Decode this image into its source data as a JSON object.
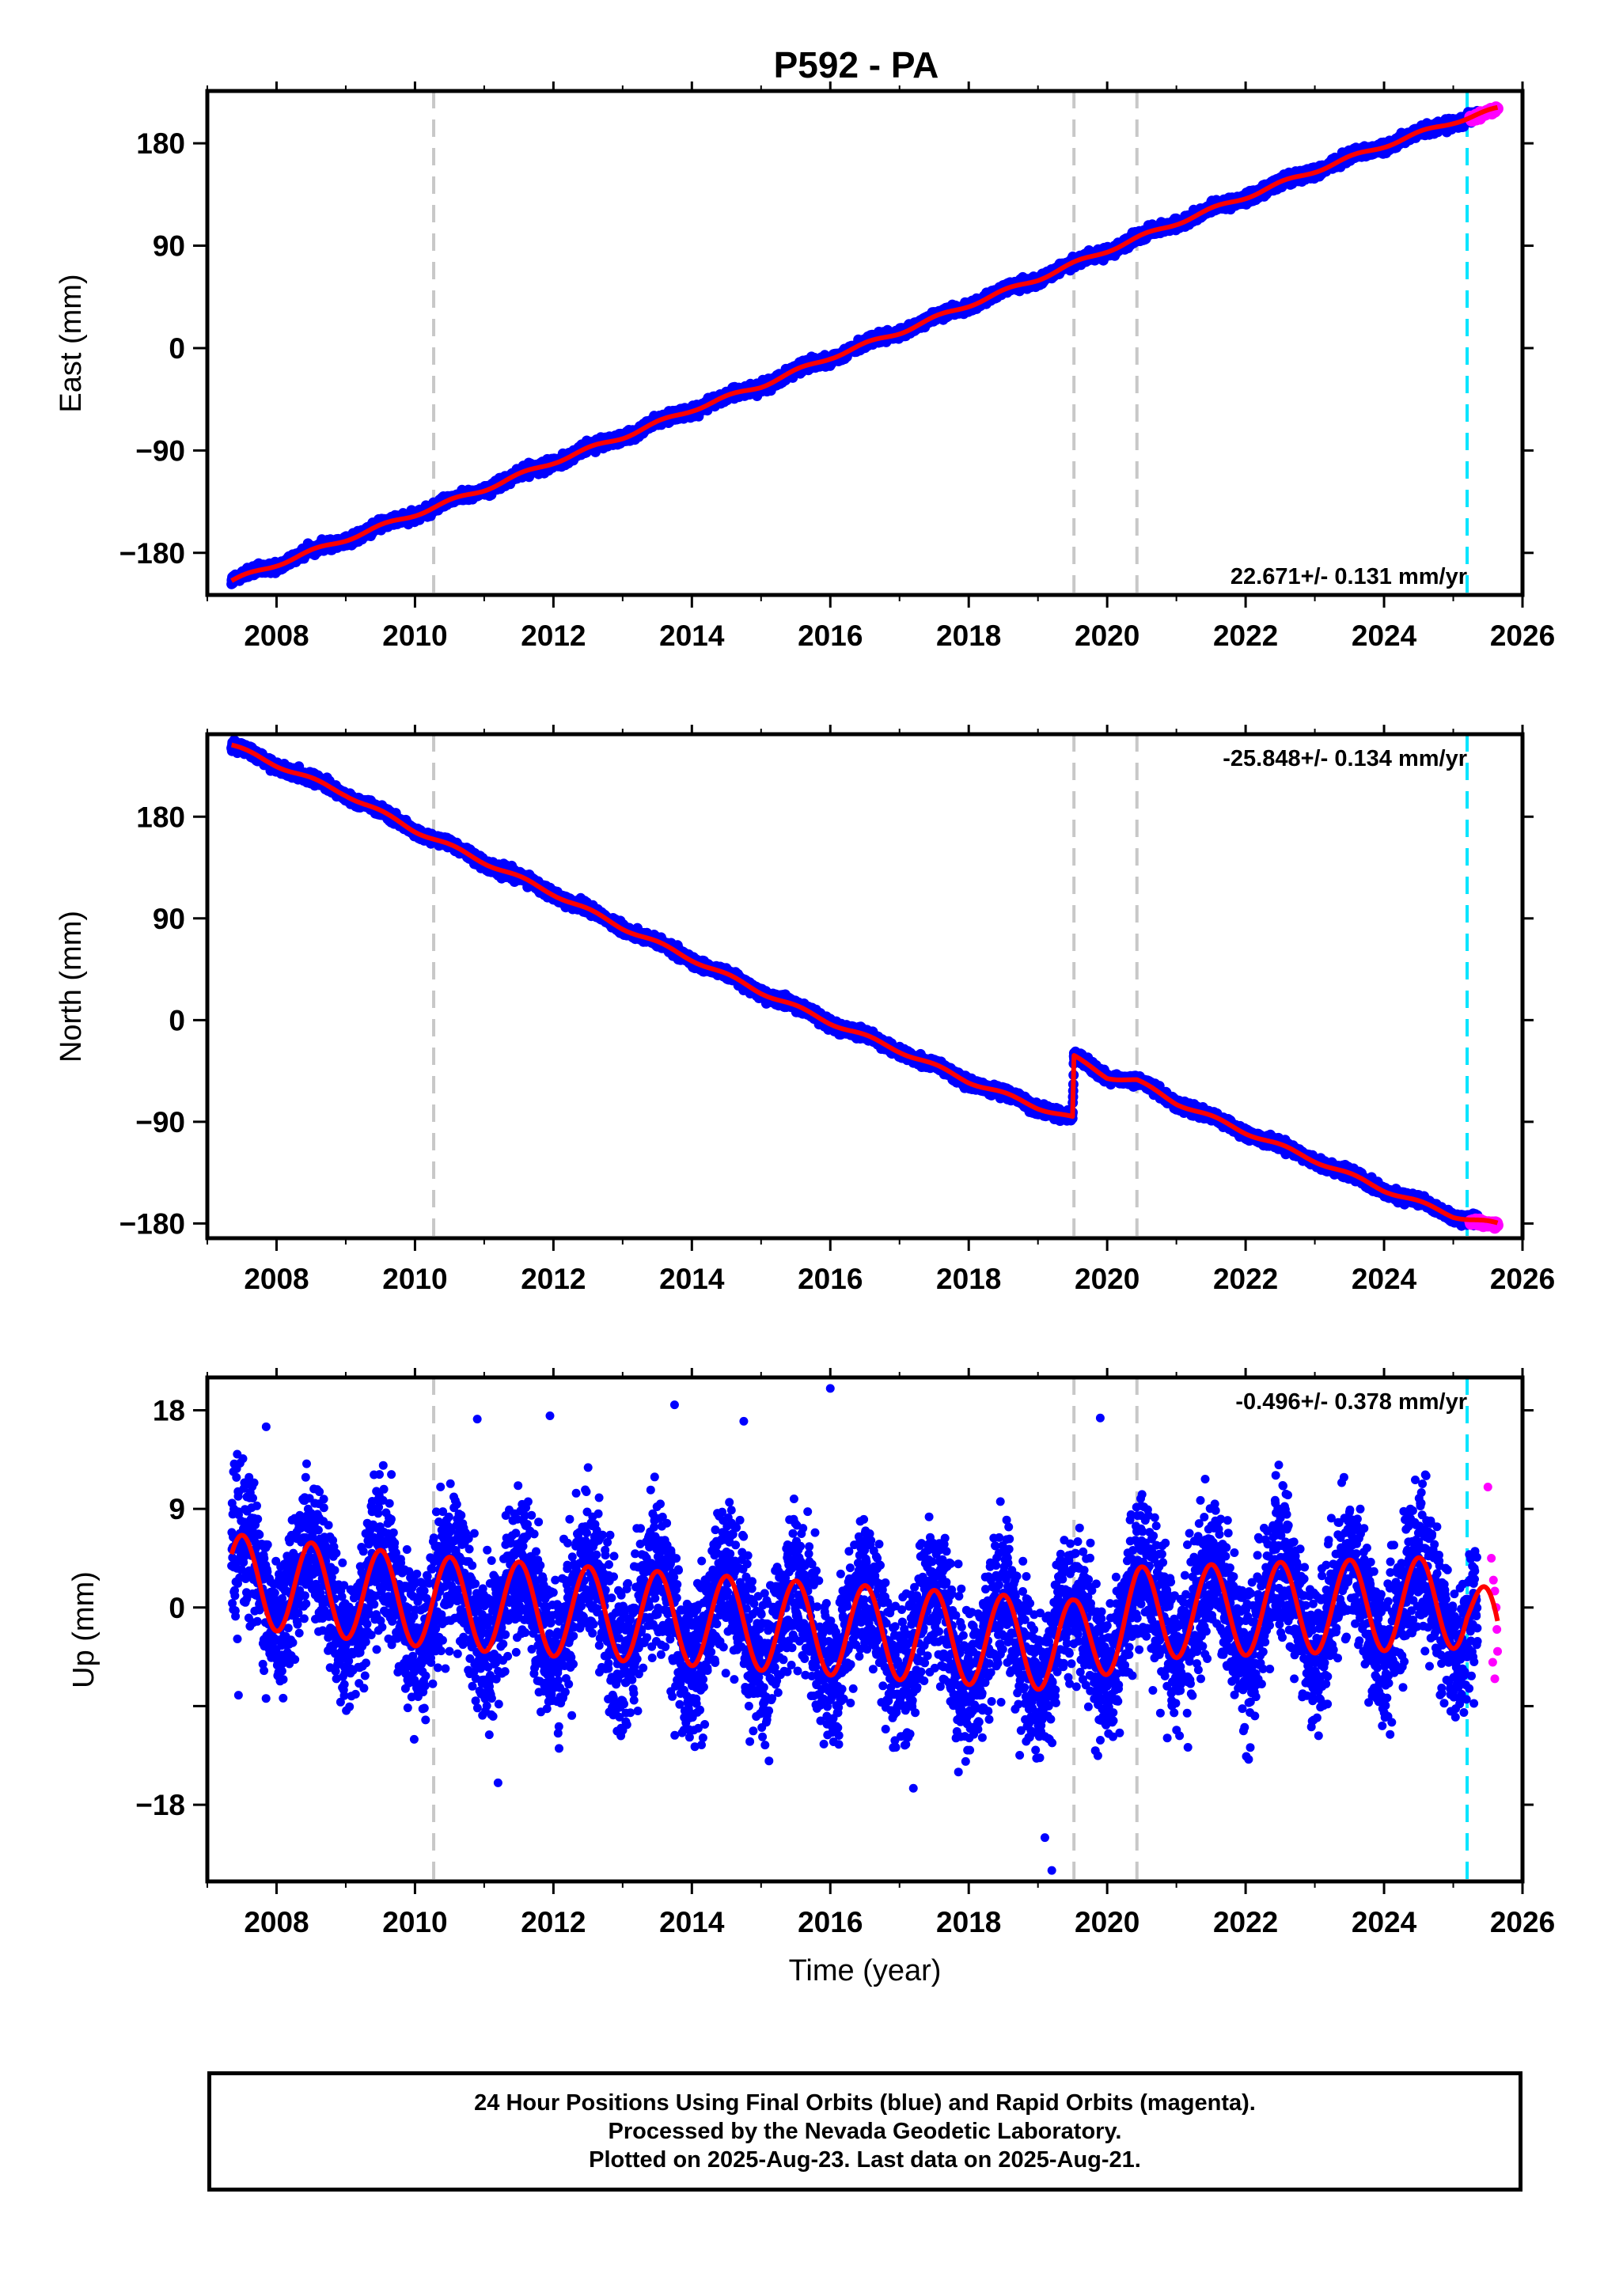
{
  "title": "P592 - PA",
  "colors": {
    "final_orbits": "#0000ff",
    "rapid_orbits": "#ff00ff",
    "model": "#ff0000",
    "equipment_change": "#c8c8c8",
    "recent_marker": "#00e5ff"
  },
  "chart_data": [
    {
      "type": "scatter",
      "component": "East",
      "ylabel": "East (mm)",
      "xlabel": "",
      "xlim": [
        2007.0,
        2026.0
      ],
      "ylim": [
        -217,
        226
      ],
      "xticks": [
        "2008",
        "2010",
        "2012",
        "2014",
        "2016",
        "2018",
        "2020",
        "2022",
        "2024",
        "2026"
      ],
      "yticks": [
        "180",
        "90",
        "0",
        "−90",
        "−180"
      ],
      "ytick_values": [
        180,
        90,
        0,
        -90,
        -180
      ],
      "rate_label": "22.671+/- 0.131 mm/yr",
      "rate_position": "bottom-right",
      "series": [
        {
          "name": "Final Orbits",
          "color": "#0000ff",
          "x": [
            2007.35,
            2008.0,
            2009.0,
            2010.0,
            2011.0,
            2012.0,
            2013.0,
            2014.0,
            2015.0,
            2016.0,
            2017.0,
            2018.0,
            2019.0,
            2020.0,
            2021.0,
            2022.0,
            2023.0,
            2024.0,
            2025.0,
            2025.2
          ],
          "y": [
            -205,
            -190,
            -168,
            -146,
            -124,
            -100,
            -78,
            -54,
            -33,
            -8,
            14,
            38,
            61,
            86,
            110,
            133,
            156,
            178,
            199,
            202
          ]
        },
        {
          "name": "Rapid Orbits",
          "color": "#ff00ff",
          "x": [
            2025.25,
            2025.4,
            2025.55,
            2025.64
          ],
          "y": [
            202,
            205,
            208,
            211
          ]
        },
        {
          "name": "Model",
          "color": "#ff0000",
          "x": [
            2007.35,
            2008.0,
            2009.0,
            2010.0,
            2011.0,
            2012.0,
            2013.0,
            2014.0,
            2015.0,
            2016.0,
            2017.0,
            2018.0,
            2019.0,
            2020.0,
            2021.0,
            2022.0,
            2023.0,
            2024.0,
            2025.0,
            2025.64
          ],
          "y": [
            -205,
            -190,
            -168,
            -146,
            -124,
            -100,
            -78,
            -54,
            -33,
            -8,
            14,
            38,
            61,
            86,
            110,
            133,
            156,
            178,
            199,
            210
          ]
        }
      ],
      "equipment_changes": [
        2010.27,
        2019.52,
        2020.43
      ],
      "recent_marker": 2025.2
    },
    {
      "type": "scatter",
      "component": "North",
      "ylabel": "North (mm)",
      "xlabel": "",
      "xlim": [
        2007.0,
        2026.0
      ],
      "ylim": [
        -193,
        253
      ],
      "xticks": [
        "2008",
        "2010",
        "2012",
        "2014",
        "2016",
        "2018",
        "2020",
        "2022",
        "2024",
        "2026"
      ],
      "yticks": [
        "180",
        "90",
        "0",
        "−90",
        "−180"
      ],
      "ytick_values": [
        180,
        90,
        0,
        -90,
        -180
      ],
      "rate_label": "-25.848+/- 0.134 mm/yr",
      "rate_position": "top-right",
      "series": [
        {
          "name": "Final Orbits",
          "color": "#0000ff",
          "x": [
            2007.35,
            2008.0,
            2009.0,
            2010.0,
            2011.0,
            2012.0,
            2013.0,
            2014.0,
            2015.0,
            2016.0,
            2017.0,
            2018.0,
            2019.0,
            2019.5,
            2019.52,
            2020.0,
            2020.43,
            2021.0,
            2022.0,
            2023.0,
            2024.0,
            2025.0,
            2025.2
          ],
          "y": [
            243,
            226,
            200,
            168,
            140,
            112,
            82,
            54,
            25,
            -2,
            -27,
            -54,
            -77,
            -87,
            -33,
            -50,
            -54,
            -73,
            -99,
            -124,
            -150,
            -173,
            -177
          ]
        },
        {
          "name": "Rapid Orbits",
          "color": "#ff00ff",
          "x": [
            2025.3,
            2025.5,
            2025.64
          ],
          "y": [
            -178,
            -180,
            -181
          ]
        },
        {
          "name": "Model",
          "color": "#ff0000",
          "x": [
            2007.35,
            2008.0,
            2009.0,
            2010.0,
            2011.0,
            2012.0,
            2013.0,
            2014.0,
            2015.0,
            2016.0,
            2017.0,
            2018.0,
            2019.0,
            2019.5,
            2019.52,
            2020.0,
            2020.43,
            2021.0,
            2022.0,
            2023.0,
            2024.0,
            2025.0,
            2025.64
          ],
          "y": [
            243,
            226,
            200,
            168,
            140,
            112,
            82,
            54,
            25,
            -2,
            -27,
            -54,
            -77,
            -87,
            -33,
            -50,
            -54,
            -73,
            -99,
            -124,
            -150,
            -173,
            -181
          ]
        }
      ],
      "equipment_changes": [
        2010.27,
        2019.52,
        2020.43
      ],
      "recent_marker": 2025.2
    },
    {
      "type": "scatter",
      "component": "Up",
      "ylabel": "Up (mm)",
      "xlabel": "Time (year)",
      "xlim": [
        2007.0,
        2026.0
      ],
      "ylim": [
        -25,
        21
      ],
      "xticks": [
        "2008",
        "2010",
        "2012",
        "2014",
        "2016",
        "2018",
        "2020",
        "2022",
        "2024",
        "2026"
      ],
      "yticks": [
        "18",
        "9",
        "0",
        "−18"
      ],
      "ytick_values": [
        18,
        9,
        0,
        -18
      ],
      "yticks_unlabeled": [
        -9
      ],
      "rate_label": "-0.496+/- 0.378 mm/yr",
      "rate_position": "top-right",
      "series": [
        {
          "name": "Final Orbits",
          "color": "#0000ff",
          "note": "daily scatter about seasonal model, spread about ±6 mm"
        },
        {
          "name": "Rapid Orbits",
          "color": "#ff00ff",
          "x": [
            2025.5,
            2025.55,
            2025.58,
            2025.6,
            2025.62,
            2025.63,
            2025.64,
            2025.6,
            2025.57
          ],
          "y": [
            11,
            4.5,
            2.5,
            1.5,
            0,
            -2,
            -4,
            -6.5,
            -5
          ]
        },
        {
          "name": "Model",
          "color": "#ff0000",
          "seasonal_amplitude_mm": 4.2,
          "x": [
            2007.35,
            2010.27,
            2019.52,
            2020.43,
            2025.2,
            2025.64
          ],
          "y": [
            2.5,
            0.5,
            -3.5,
            -0.5,
            0.5,
            -4
          ]
        }
      ],
      "outliers": [
        {
          "x": 2016.0,
          "y": 20
        },
        {
          "x": 2013.75,
          "y": 18.5
        },
        {
          "x": 2011.95,
          "y": 17.5
        },
        {
          "x": 2010.9,
          "y": 17.2
        },
        {
          "x": 2019.9,
          "y": 17.3
        },
        {
          "x": 2014.75,
          "y": 17
        },
        {
          "x": 2007.85,
          "y": 16.5
        },
        {
          "x": 2019.2,
          "y": -24
        },
        {
          "x": 2019.1,
          "y": -21
        },
        {
          "x": 2017.2,
          "y": -16.5
        },
        {
          "x": 2011.2,
          "y": -16
        },
        {
          "x": 2007.45,
          "y": -8
        }
      ],
      "equipment_changes": [
        2010.27,
        2019.52,
        2020.43
      ],
      "recent_marker": 2025.2
    }
  ],
  "footer": {
    "line1": "24 Hour Positions Using Final Orbits (blue) and Rapid Orbits (magenta).",
    "line2": "Processed by the Nevada Geodetic Laboratory.",
    "line3": "Plotted on 2025-Aug-23. Last data on 2025-Aug-21."
  }
}
